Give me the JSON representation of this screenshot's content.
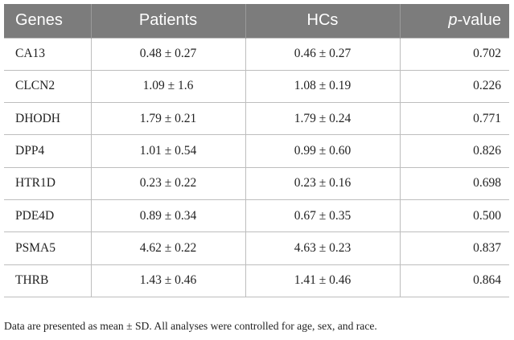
{
  "table": {
    "headers": {
      "genes": "Genes",
      "patients": "Patients",
      "hcs": "HCs",
      "p_prefix": "p",
      "p_suffix": "-value"
    },
    "rows": [
      {
        "gene": "CA13",
        "patients": "0.48 ± 0.27",
        "hcs": "0.46 ± 0.27",
        "p": "0.702"
      },
      {
        "gene": "CLCN2",
        "patients": "1.09 ± 1.6",
        "hcs": "1.08 ± 0.19",
        "p": "0.226"
      },
      {
        "gene": "DHODH",
        "patients": "1.79 ± 0.21",
        "hcs": "1.79 ± 0.24",
        "p": "0.771"
      },
      {
        "gene": "DPP4",
        "patients": "1.01 ± 0.54",
        "hcs": "0.99 ± 0.60",
        "p": "0.826"
      },
      {
        "gene": "HTR1D",
        "patients": "0.23 ± 0.22",
        "hcs": "0.23 ± 0.16",
        "p": "0.698"
      },
      {
        "gene": "PDE4D",
        "patients": "0.89 ± 0.34",
        "hcs": "0.67 ± 0.35",
        "p": "0.500"
      },
      {
        "gene": "PSMA5",
        "patients": "4.62 ± 0.22",
        "hcs": "4.63 ± 0.23",
        "p": "0.837"
      },
      {
        "gene": "THRB",
        "patients": "1.43 ± 0.46",
        "hcs": "1.41 ± 0.46",
        "p": "0.864"
      }
    ],
    "header_bg": "#7c7c7c"
  },
  "footnote": "Data are presented as mean ± SD. All analyses were controlled for age, sex, and race."
}
